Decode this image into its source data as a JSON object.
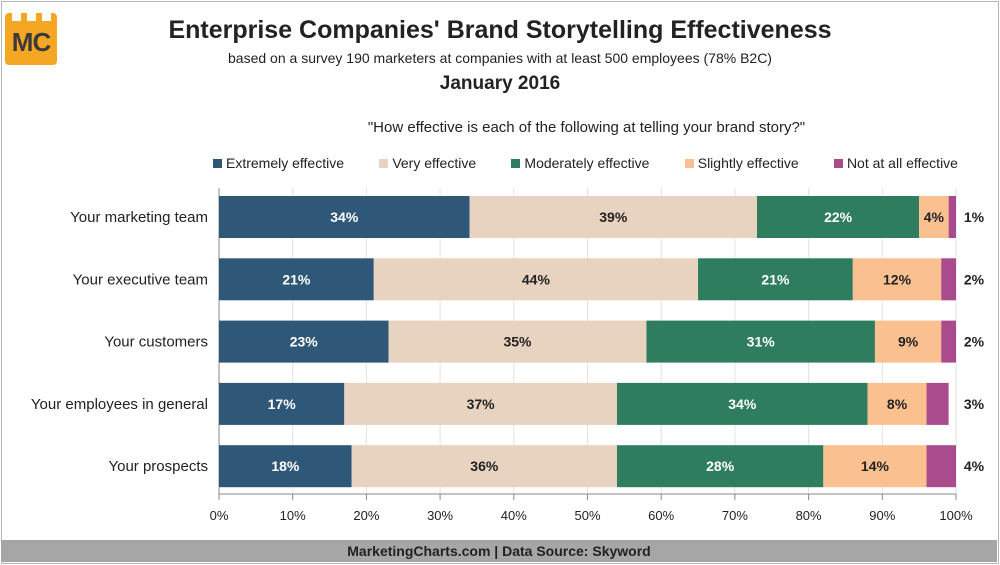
{
  "logo": {
    "text": "MC"
  },
  "header": {
    "title": "Enterprise Companies' Brand Storytelling Effectiveness",
    "subtitle": "based on a survey 190 marketers at companies with at least 500 employees (78% B2C)",
    "date": "January 2016"
  },
  "colors": {
    "extremely": "#2e5778",
    "very": "#e8d2c0",
    "moderately": "#2e7d5e",
    "slightly": "#fac090",
    "not_at_all": "#a94b8d"
  },
  "chart_data": {
    "type": "bar",
    "orientation": "horizontal",
    "stacked": true,
    "title": "\"How effective is each of the following at telling your brand story?\"",
    "categories": [
      "Your marketing team",
      "Your executive team",
      "Your customers",
      "Your employees in general",
      "Your prospects"
    ],
    "series": [
      {
        "name": "Extremely effective",
        "color": "#2e5778",
        "values": [
          34,
          21,
          23,
          17,
          18
        ]
      },
      {
        "name": "Very effective",
        "color": "#e8d2c0",
        "values": [
          39,
          44,
          35,
          37,
          36
        ]
      },
      {
        "name": "Moderately effective",
        "color": "#2e7d5e",
        "values": [
          22,
          21,
          31,
          34,
          28
        ]
      },
      {
        "name": "Slightly effective",
        "color": "#fac090",
        "values": [
          4,
          12,
          9,
          8,
          14
        ]
      },
      {
        "name": "Not at all effective",
        "color": "#a94b8d",
        "values": [
          1,
          2,
          2,
          3,
          4
        ]
      }
    ],
    "xlim": [
      0,
      100
    ],
    "xticks": [
      "0%",
      "10%",
      "20%",
      "30%",
      "40%",
      "50%",
      "60%",
      "70%",
      "80%",
      "90%",
      "100%"
    ],
    "legend_position": "top"
  },
  "footer": {
    "text": "MarketingCharts.com | Data Source: Skyword"
  }
}
